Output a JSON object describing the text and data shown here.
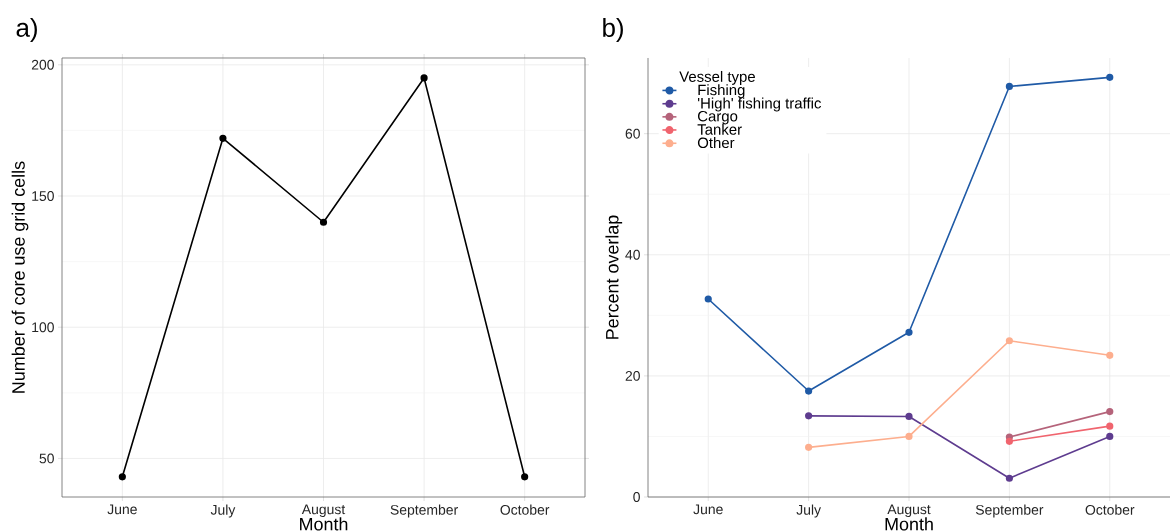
{
  "chart_data": [
    {
      "type": "line",
      "title": "a)",
      "xlabel": "Month",
      "ylabel": "Number of core use grid cells",
      "categories": [
        "June",
        "July",
        "August",
        "September",
        "October"
      ],
      "ylim": [
        35.3,
        202.6
      ],
      "yticks": [
        50,
        100,
        150,
        200
      ],
      "grid": true,
      "marker": "circle",
      "line_style": "solid",
      "legend": false,
      "series": [
        {
          "color": "#000000",
          "values": [
            43,
            172,
            140,
            195,
            43
          ]
        }
      ]
    },
    {
      "type": "line",
      "title": "b)",
      "xlabel": "Month",
      "ylabel": "Percent overlap",
      "legend_title": "Vessel type",
      "categories": [
        "June",
        "July",
        "August",
        "September",
        "October"
      ],
      "ylim": [
        0,
        72.5
      ],
      "yticks": [
        0,
        20,
        40,
        60
      ],
      "grid": true,
      "marker": "circle",
      "line_style": "solid",
      "legend": "top left",
      "series": [
        {
          "name": "Fishing",
          "color": "#1f5aa6",
          "values": [
            32.7,
            17.5,
            27.2,
            67.8,
            69.3
          ]
        },
        {
          "name": "'High' fishing traffic",
          "color": "#5e3c8f",
          "values": [
            null,
            13.4,
            13.3,
            3.1,
            10.0
          ]
        },
        {
          "name": "Cargo",
          "color": "#b5637a",
          "values": [
            null,
            null,
            null,
            9.9,
            14.1
          ]
        },
        {
          "name": "Tanker",
          "color": "#f0646e",
          "values": [
            null,
            null,
            null,
            9.2,
            11.7
          ]
        },
        {
          "name": "Other",
          "color": "#fdae8e",
          "values": [
            null,
            8.2,
            10.0,
            25.8,
            23.4
          ]
        }
      ]
    }
  ]
}
